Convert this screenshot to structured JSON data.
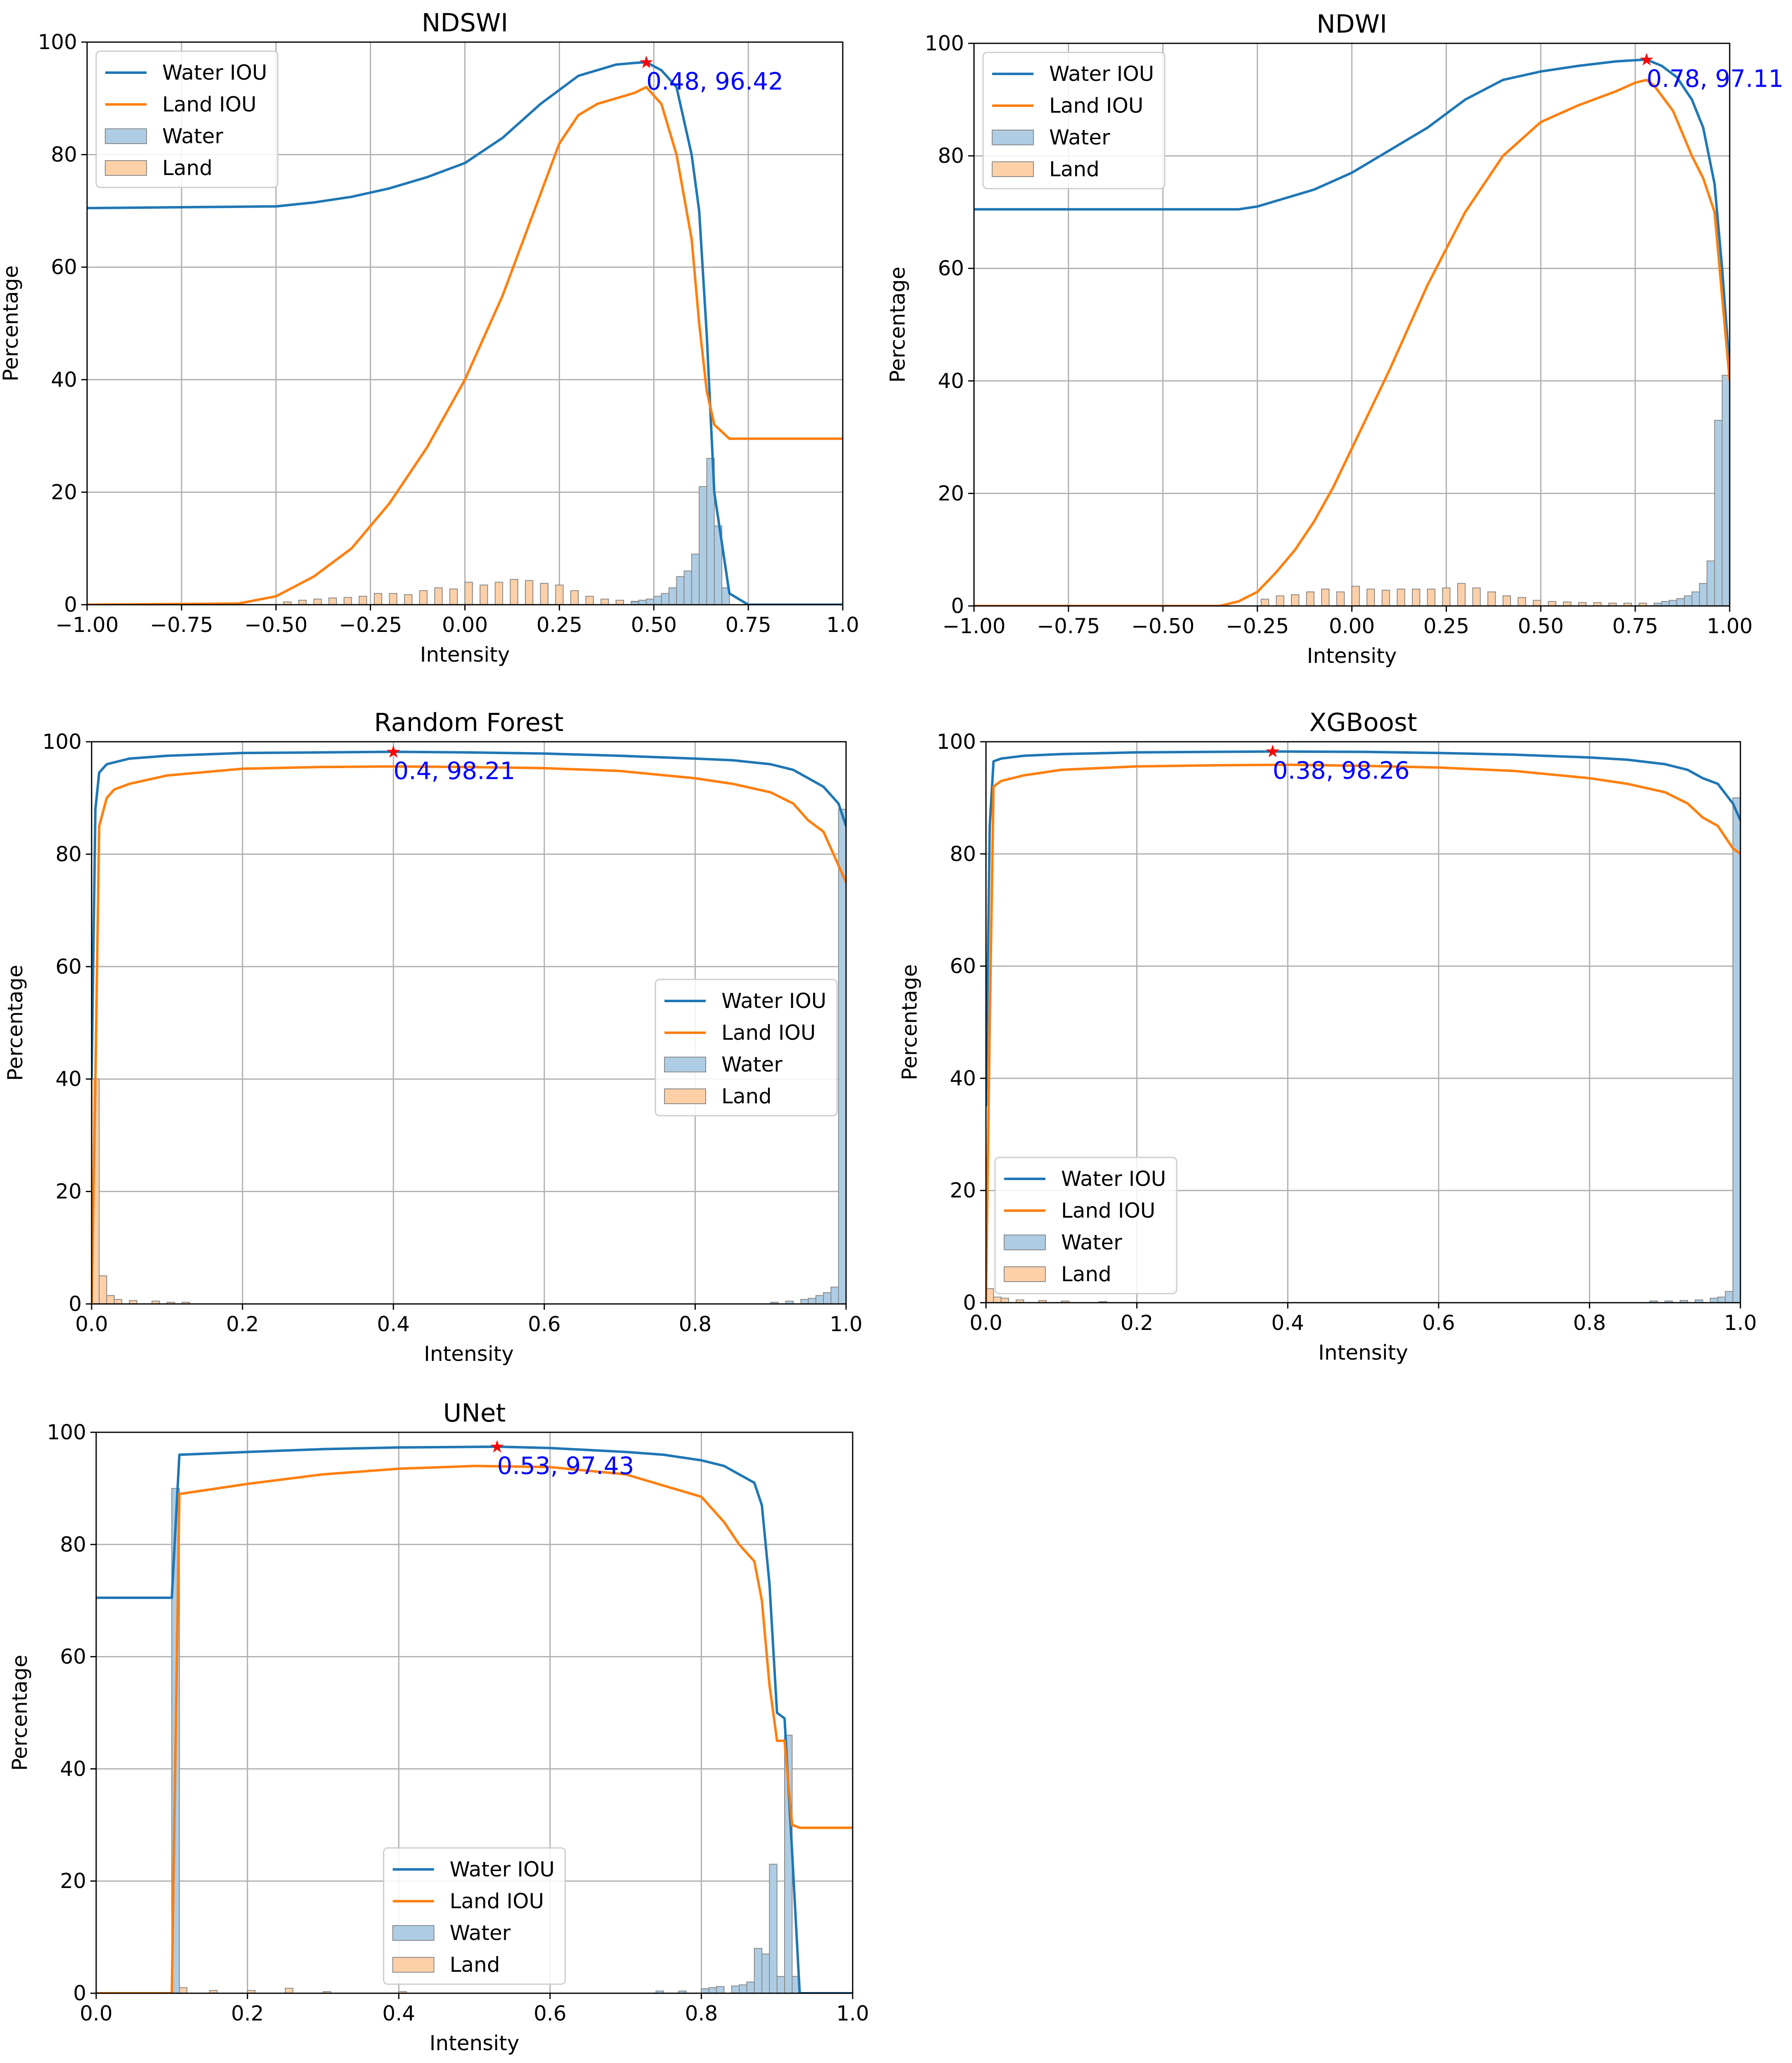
{
  "figure": {
    "legend_labels": [
      "Water IOU",
      "Land IOU",
      "Water",
      "Land"
    ],
    "colors": {
      "water_line": "#1f77b4",
      "land_line": "#ff7f0e",
      "water_hist": "#aecde4",
      "land_hist": "#fdd0a8",
      "hist_edge": "#888888",
      "annotation": "#0000ff",
      "star": "#ff0000",
      "grid": "#b0b0b0"
    }
  },
  "chart_data": [
    {
      "type": "line",
      "title": "NDSWI",
      "xlabel": "Intensity",
      "ylabel": "Percentage",
      "xlim": [
        -1.0,
        1.0
      ],
      "ylim": [
        0,
        100
      ],
      "xticks": [
        -1.0,
        -0.75,
        -0.5,
        -0.25,
        0.0,
        0.25,
        0.5,
        0.75,
        1.0
      ],
      "xtick_labels": [
        "−1.00",
        "−0.75",
        "−0.50",
        "−0.25",
        "0.00",
        "0.25",
        "0.50",
        "0.75",
        "1.0"
      ],
      "yticks": [
        0,
        20,
        40,
        60,
        80,
        100
      ],
      "ytick_labels": [
        "0",
        "20",
        "40",
        "60",
        "80",
        "100"
      ],
      "legend": "top-left",
      "series": [
        {
          "name": "Water IOU",
          "x": [
            -1.0,
            -0.5,
            -0.4,
            -0.3,
            -0.2,
            -0.1,
            0.0,
            0.1,
            0.2,
            0.3,
            0.4,
            0.45,
            0.48,
            0.52,
            0.56,
            0.6,
            0.62,
            0.64,
            0.66,
            0.7,
            0.75,
            1.0
          ],
          "y": [
            70.5,
            70.8,
            71.5,
            72.5,
            74,
            76,
            78.5,
            83,
            89,
            94,
            96,
            96.3,
            96.42,
            95,
            92,
            80,
            70,
            48,
            20,
            2,
            0,
            0
          ]
        },
        {
          "name": "Land IOU",
          "x": [
            -1.0,
            -0.6,
            -0.5,
            -0.4,
            -0.3,
            -0.2,
            -0.1,
            0.0,
            0.1,
            0.2,
            0.25,
            0.3,
            0.35,
            0.4,
            0.45,
            0.48,
            0.52,
            0.56,
            0.6,
            0.62,
            0.64,
            0.66,
            0.7,
            0.75,
            1.0
          ],
          "y": [
            0,
            0.2,
            1.5,
            5,
            10,
            18,
            28,
            40,
            55,
            73,
            82,
            87,
            89,
            90,
            91,
            92,
            89,
            80,
            65,
            50,
            38,
            32,
            29.5,
            29.5,
            29.5
          ]
        }
      ],
      "histograms": [
        {
          "name": "Water",
          "bin_width": 0.02,
          "x": [
            0.44,
            0.46,
            0.48,
            0.5,
            0.52,
            0.54,
            0.56,
            0.58,
            0.6,
            0.62,
            0.64,
            0.66,
            0.68
          ],
          "values": [
            0.5,
            0.8,
            1,
            1.5,
            2,
            3,
            5,
            6,
            9,
            21,
            26,
            14,
            3
          ]
        },
        {
          "name": "Land",
          "bin_width": 0.02,
          "x": [
            -0.48,
            -0.44,
            -0.4,
            -0.36,
            -0.32,
            -0.28,
            -0.24,
            -0.2,
            -0.16,
            -0.12,
            -0.08,
            -0.04,
            0.0,
            0.04,
            0.08,
            0.12,
            0.16,
            0.2,
            0.24,
            0.28,
            0.32,
            0.36,
            0.4,
            0.44,
            0.48
          ],
          "values": [
            0.5,
            0.8,
            1,
            1.2,
            1.3,
            1.5,
            2,
            2,
            1.8,
            2.5,
            3,
            2.8,
            4,
            3.5,
            4,
            4.5,
            4.3,
            3.8,
            3.5,
            2.5,
            1.5,
            1,
            0.8,
            0.6,
            0.5
          ]
        }
      ],
      "optimum": {
        "x": 0.48,
        "y": 96.42,
        "label": "0.48, 96.42"
      }
    },
    {
      "type": "line",
      "title": "NDWI",
      "xlabel": "Intensity",
      "ylabel": "Percentage",
      "xlim": [
        -1.0,
        1.0
      ],
      "ylim": [
        0,
        100
      ],
      "xticks": [
        -1.0,
        -0.75,
        -0.5,
        -0.25,
        0.0,
        0.25,
        0.5,
        0.75,
        1.0
      ],
      "xtick_labels": [
        "−1.00",
        "−0.75",
        "−0.50",
        "−0.25",
        "0.00",
        "0.25",
        "0.50",
        "0.75",
        "1.00"
      ],
      "yticks": [
        0,
        20,
        40,
        60,
        80,
        100
      ],
      "ytick_labels": [
        "0",
        "20",
        "40",
        "60",
        "80",
        "100"
      ],
      "legend": "top-left",
      "series": [
        {
          "name": "Water IOU",
          "x": [
            -1.0,
            -0.3,
            -0.25,
            -0.2,
            -0.1,
            0.0,
            0.1,
            0.2,
            0.3,
            0.4,
            0.5,
            0.6,
            0.7,
            0.75,
            0.78,
            0.82,
            0.86,
            0.9,
            0.93,
            0.96,
            0.98,
            1.0
          ],
          "y": [
            70.5,
            70.5,
            71,
            72,
            74,
            77,
            81,
            85,
            90,
            93.5,
            95,
            96,
            96.8,
            97,
            97.11,
            96,
            94,
            90,
            85,
            75,
            60,
            42
          ]
        },
        {
          "name": "Land IOU",
          "x": [
            -1.0,
            -0.35,
            -0.3,
            -0.25,
            -0.2,
            -0.15,
            -0.1,
            -0.05,
            0.0,
            0.1,
            0.2,
            0.3,
            0.4,
            0.5,
            0.6,
            0.7,
            0.75,
            0.78,
            0.8,
            0.85,
            0.9,
            0.93,
            0.96,
            0.98,
            1.0
          ],
          "y": [
            0,
            0,
            0.8,
            2.5,
            6,
            10,
            15,
            21,
            28,
            42,
            57,
            70,
            80,
            86,
            89,
            91.5,
            93,
            93.5,
            92.5,
            88,
            80,
            76,
            70,
            55,
            40
          ]
        }
      ],
      "histograms": [
        {
          "name": "Water",
          "bin_width": 0.02,
          "x": [
            0.8,
            0.82,
            0.84,
            0.86,
            0.88,
            0.9,
            0.92,
            0.94,
            0.96,
            0.98
          ],
          "values": [
            0.5,
            0.8,
            1,
            1.3,
            1.8,
            2.5,
            4,
            8,
            33,
            41
          ]
        },
        {
          "name": "Land",
          "bin_width": 0.02,
          "x": [
            -0.24,
            -0.2,
            -0.16,
            -0.12,
            -0.08,
            -0.04,
            0.0,
            0.04,
            0.08,
            0.12,
            0.16,
            0.2,
            0.24,
            0.28,
            0.32,
            0.36,
            0.4,
            0.44,
            0.48,
            0.52,
            0.56,
            0.6,
            0.64,
            0.68,
            0.72,
            0.76
          ],
          "values": [
            1.2,
            1.8,
            2,
            2.5,
            3,
            2.5,
            3.5,
            3,
            2.8,
            3,
            3,
            3,
            3.2,
            4,
            3.2,
            2.5,
            1.8,
            1.5,
            1,
            0.8,
            0.7,
            0.6,
            0.6,
            0.5,
            0.5,
            0.5
          ]
        }
      ],
      "optimum": {
        "x": 0.78,
        "y": 97.11,
        "label": "0.78, 97.11"
      }
    },
    {
      "type": "line",
      "title": "Random Forest",
      "xlabel": "Intensity",
      "ylabel": "Percentage",
      "xlim": [
        0.0,
        1.0
      ],
      "ylim": [
        0,
        100
      ],
      "xticks": [
        0.0,
        0.2,
        0.4,
        0.6,
        0.8,
        1.0
      ],
      "xtick_labels": [
        "0.0",
        "0.2",
        "0.4",
        "0.6",
        "0.8",
        "1.0"
      ],
      "yticks": [
        0,
        20,
        40,
        60,
        80,
        100
      ],
      "ytick_labels": [
        "0",
        "20",
        "40",
        "60",
        "80",
        "100"
      ],
      "legend": "center-right",
      "series": [
        {
          "name": "Water IOU",
          "x": [
            0.0,
            0.005,
            0.01,
            0.02,
            0.05,
            0.1,
            0.2,
            0.3,
            0.4,
            0.5,
            0.6,
            0.7,
            0.8,
            0.85,
            0.9,
            0.93,
            0.95,
            0.97,
            0.99,
            1.0
          ],
          "y": [
            40,
            88,
            94.5,
            96,
            97,
            97.5,
            98,
            98.1,
            98.21,
            98.1,
            97.9,
            97.5,
            97,
            96.7,
            96,
            95,
            93.5,
            92,
            89,
            85
          ]
        },
        {
          "name": "Land IOU",
          "x": [
            0.0,
            0.005,
            0.01,
            0.02,
            0.03,
            0.05,
            0.1,
            0.2,
            0.3,
            0.4,
            0.5,
            0.6,
            0.7,
            0.8,
            0.85,
            0.9,
            0.93,
            0.95,
            0.97,
            0.99,
            1.0
          ],
          "y": [
            0,
            40,
            85,
            90,
            91.5,
            92.5,
            94,
            95.2,
            95.5,
            95.6,
            95.5,
            95.3,
            94.8,
            93.5,
            92.5,
            91,
            89,
            86,
            84,
            78,
            75
          ]
        }
      ],
      "histograms": [
        {
          "name": "Water",
          "bin_width": 0.01,
          "x": [
            0.9,
            0.92,
            0.94,
            0.95,
            0.96,
            0.97,
            0.98,
            0.99
          ],
          "values": [
            0.3,
            0.5,
            0.8,
            1,
            1.5,
            2,
            3,
            88
          ]
        },
        {
          "name": "Land",
          "bin_width": 0.01,
          "x": [
            0.0,
            0.01,
            0.02,
            0.03,
            0.05,
            0.08,
            0.1,
            0.12
          ],
          "values": [
            40,
            5,
            1.5,
            0.8,
            0.6,
            0.5,
            0.3,
            0.3
          ]
        }
      ],
      "optimum": {
        "x": 0.4,
        "y": 98.21,
        "label": "0.4, 98.21"
      }
    },
    {
      "type": "line",
      "title": "XGBoost",
      "xlabel": "Intensity",
      "ylabel": "Percentage",
      "xlim": [
        0.0,
        1.0
      ],
      "ylim": [
        0,
        100
      ],
      "xticks": [
        0.0,
        0.2,
        0.4,
        0.6,
        0.8,
        1.0
      ],
      "xtick_labels": [
        "0.0",
        "0.2",
        "0.4",
        "0.6",
        "0.8",
        "1.0"
      ],
      "yticks": [
        0,
        20,
        40,
        60,
        80,
        100
      ],
      "ytick_labels": [
        "0",
        "20",
        "40",
        "60",
        "80",
        "100"
      ],
      "legend": "bottom-left",
      "series": [
        {
          "name": "Water IOU",
          "x": [
            0.0,
            0.005,
            0.01,
            0.02,
            0.05,
            0.1,
            0.2,
            0.3,
            0.38,
            0.5,
            0.6,
            0.7,
            0.8,
            0.85,
            0.9,
            0.93,
            0.95,
            0.97,
            0.99,
            1.0
          ],
          "y": [
            35,
            85,
            96.5,
            97,
            97.5,
            97.8,
            98.1,
            98.2,
            98.26,
            98.2,
            98,
            97.7,
            97.2,
            96.8,
            96,
            95,
            93.5,
            92.5,
            89,
            86
          ]
        },
        {
          "name": "Land IOU",
          "x": [
            0.0,
            0.005,
            0.01,
            0.02,
            0.05,
            0.1,
            0.2,
            0.3,
            0.4,
            0.5,
            0.6,
            0.7,
            0.8,
            0.85,
            0.9,
            0.93,
            0.95,
            0.97,
            0.99,
            1.0
          ],
          "y": [
            0,
            50,
            92,
            93,
            94,
            95,
            95.6,
            95.8,
            95.9,
            95.7,
            95.4,
            94.8,
            93.5,
            92.5,
            91,
            89,
            86.5,
            85,
            81,
            80
          ]
        }
      ],
      "histograms": [
        {
          "name": "Water",
          "bin_width": 0.01,
          "x": [
            0.88,
            0.9,
            0.92,
            0.94,
            0.96,
            0.97,
            0.98,
            0.99
          ],
          "values": [
            0.3,
            0.3,
            0.4,
            0.5,
            0.8,
            1,
            2,
            90
          ]
        },
        {
          "name": "Land",
          "bin_width": 0.01,
          "x": [
            0.0,
            0.01,
            0.02,
            0.04,
            0.07,
            0.1,
            0.15
          ],
          "values": [
            2.5,
            1,
            0.8,
            0.5,
            0.4,
            0.3,
            0.2
          ]
        }
      ],
      "optimum": {
        "x": 0.38,
        "y": 98.26,
        "label": "0.38, 98.26"
      }
    },
    {
      "type": "line",
      "title": "UNet",
      "xlabel": "Intensity",
      "ylabel": "Percentage",
      "xlim": [
        0.0,
        1.0
      ],
      "ylim": [
        0,
        100
      ],
      "xticks": [
        0.0,
        0.2,
        0.4,
        0.6,
        0.8,
        1.0
      ],
      "xtick_labels": [
        "0.0",
        "0.2",
        "0.4",
        "0.6",
        "0.8",
        "1.0"
      ],
      "yticks": [
        0,
        20,
        40,
        60,
        80,
        100
      ],
      "ytick_labels": [
        "0",
        "20",
        "40",
        "60",
        "80",
        "100"
      ],
      "legend": "bottom-center",
      "series": [
        {
          "name": "Water IOU",
          "x": [
            0.0,
            0.1,
            0.11,
            0.2,
            0.3,
            0.4,
            0.53,
            0.6,
            0.7,
            0.75,
            0.8,
            0.83,
            0.85,
            0.87,
            0.88,
            0.89,
            0.9,
            0.91,
            0.92,
            0.93,
            1.0
          ],
          "y": [
            70.5,
            70.5,
            96,
            96.5,
            97,
            97.3,
            97.43,
            97.2,
            96.5,
            96,
            95,
            94,
            92.5,
            91,
            87,
            73,
            50,
            49,
            25,
            0,
            0
          ]
        },
        {
          "name": "Land IOU",
          "x": [
            0.0,
            0.1,
            0.11,
            0.2,
            0.3,
            0.4,
            0.5,
            0.6,
            0.7,
            0.75,
            0.8,
            0.83,
            0.85,
            0.87,
            0.88,
            0.89,
            0.9,
            0.91,
            0.92,
            0.93,
            1.0
          ],
          "y": [
            0,
            0,
            89,
            90.8,
            92.5,
            93.5,
            94,
            93.8,
            92.5,
            90.5,
            88.5,
            84,
            80,
            77,
            70,
            55,
            45,
            45,
            30,
            29.5,
            29.5
          ]
        }
      ],
      "histograms": [
        {
          "name": "Water",
          "bin_width": 0.01,
          "x": [
            0.1,
            0.74,
            0.77,
            0.8,
            0.81,
            0.82,
            0.84,
            0.85,
            0.86,
            0.87,
            0.88,
            0.89,
            0.9,
            0.91,
            0.92
          ],
          "values": [
            90,
            0.4,
            0.4,
            0.8,
            1,
            1.2,
            1.3,
            1.5,
            2,
            8,
            7,
            23,
            3,
            46,
            3
          ]
        },
        {
          "name": "Land",
          "bin_width": 0.01,
          "x": [
            0.1,
            0.11,
            0.15,
            0.2,
            0.25,
            0.3,
            0.4
          ],
          "values": [
            89,
            1,
            0.5,
            0.5,
            0.9,
            0.3,
            0.3
          ]
        }
      ],
      "optimum": {
        "x": 0.53,
        "y": 97.43,
        "label": "0.53, 97.43"
      }
    }
  ]
}
